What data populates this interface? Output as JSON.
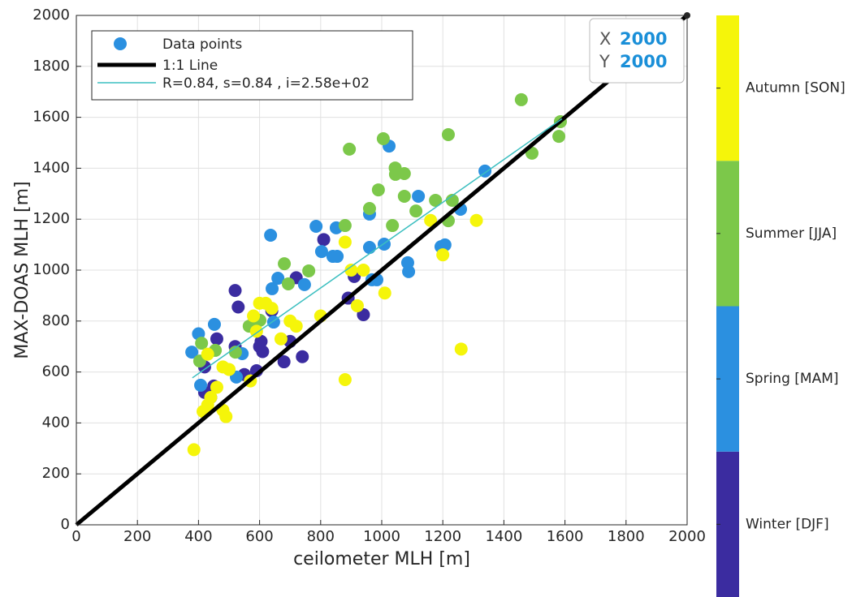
{
  "chart_data": {
    "type": "scatter",
    "xlabel": "ceilometer MLH [m]",
    "ylabel": "MAX-DOAS MLH [m]",
    "xlim": [
      0,
      2000
    ],
    "ylim": [
      0,
      2000
    ],
    "xticks": [
      0,
      200,
      400,
      600,
      800,
      1000,
      1200,
      1400,
      1600,
      1800,
      2000
    ],
    "yticks": [
      0,
      200,
      400,
      600,
      800,
      1000,
      1200,
      1400,
      1600,
      1800,
      2000
    ],
    "grid": true,
    "legend": "upper left",
    "point_legend": "Data points",
    "point_legend_color": "#2b90e0",
    "series": [
      {
        "name": "Winter [DJF]",
        "color": "#3b2ca0",
        "x": [
          520,
          530,
          520,
          600,
          605,
          610,
          590,
          640,
          680,
          700,
          720,
          740,
          810,
          890,
          910,
          940,
          420,
          440,
          450,
          460,
          420,
          550
        ],
        "y": [
          920,
          855,
          700,
          700,
          720,
          680,
          605,
          840,
          640,
          720,
          970,
          660,
          1120,
          890,
          975,
          825,
          520,
          500,
          545,
          730,
          620,
          590
        ]
      },
      {
        "name": "Spring [MAM]",
        "color": "#2b90e0",
        "x": [
          400,
          378,
          452,
          636,
          641,
          660,
          747,
          785,
          803,
          840,
          854,
          851,
          960,
          960,
          968,
          984,
          1008,
          1024,
          1085,
          1088,
          1120,
          1194,
          1207,
          1258,
          1338,
          407,
          524,
          543,
          646
        ],
        "y": [
          750,
          678,
          787,
          1137,
          927,
          968,
          943,
          1172,
          1073,
          1054,
          1054,
          1166,
          1220,
          1089,
          962,
          962,
          1102,
          1487,
          1029,
          994,
          1290,
          1092,
          1099,
          1239,
          1389,
          548,
          580,
          672,
          796
        ]
      },
      {
        "name": "Summer [JJA]",
        "color": "#7cc84a",
        "x": [
          1457,
          1585,
          1580,
          1492,
          1218,
          1005,
          894,
          1044,
          1045,
          1074,
          989,
          1074,
          1176,
          1231,
          1112,
          960,
          1218,
          1035,
          880,
          761,
          681,
          694,
          566,
          410,
          404,
          455,
          521,
          601
        ],
        "y": [
          1669,
          1583,
          1525,
          1459,
          1532,
          1516,
          1475,
          1401,
          1376,
          1379,
          1315,
          1290,
          1274,
          1274,
          1232,
          1242,
          1194,
          1175,
          1175,
          997,
          1025,
          946,
          780,
          713,
          643,
          685,
          678,
          803
        ]
      },
      {
        "name": "Autumn [SON]",
        "color": "#f5f50a",
        "x": [
          385,
          415,
          440,
          480,
          490,
          430,
          460,
          480,
          500,
          570,
          580,
          590,
          600,
          620,
          640,
          670,
          700,
          720,
          800,
          880,
          900,
          920,
          940,
          1010,
          880,
          1260,
          1200,
          1310,
          1160,
          430
        ],
        "y": [
          295,
          445,
          500,
          450,
          425,
          670,
          540,
          620,
          610,
          565,
          820,
          760,
          870,
          870,
          850,
          730,
          800,
          780,
          820,
          1110,
          1000,
          860,
          1000,
          910,
          570,
          690,
          1060,
          1195,
          1195,
          470
        ]
      }
    ],
    "lines": [
      {
        "name": "1:1 Line",
        "color": "#000000",
        "width": 5,
        "x": [
          0,
          2000
        ],
        "y": [
          0,
          2000
        ]
      },
      {
        "name": "R=0.84, s=0.84 , i=2.58e+02",
        "color": "#3cbfc0",
        "width": 1.5,
        "x": [
          380,
          1590
        ],
        "y": [
          577,
          1594
        ]
      }
    ],
    "datatip": {
      "x_label": "X",
      "x": 2000,
      "y_label": "Y",
      "y": 2000
    }
  }
}
